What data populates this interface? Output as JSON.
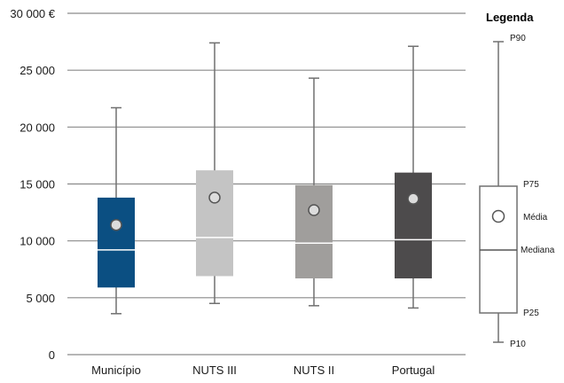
{
  "chart_data": {
    "type": "boxplot",
    "y_unit": "€",
    "ylim": [
      0,
      30000
    ],
    "grid": true,
    "y_ticks": [
      {
        "value": 0,
        "label": "0"
      },
      {
        "value": 5000,
        "label": "5 000"
      },
      {
        "value": 10000,
        "label": "10 000"
      },
      {
        "value": 15000,
        "label": "15 000"
      },
      {
        "value": 20000,
        "label": "20 000"
      },
      {
        "value": 25000,
        "label": "25 000"
      },
      {
        "value": 30000,
        "label": "30 000 €"
      }
    ],
    "categories": [
      "Município",
      "NUTS III",
      "NUTS II",
      "Portugal"
    ],
    "boxes": [
      {
        "category": "Município",
        "p10": 3600,
        "p25": 5900,
        "median": 9200,
        "p75": 13800,
        "p90": 21700,
        "mean": 11400,
        "color": "#0b4f82"
      },
      {
        "category": "NUTS III",
        "p10": 4500,
        "p25": 6900,
        "median": 10300,
        "p75": 16200,
        "p90": 27400,
        "mean": 13800,
        "color": "#c4c4c4"
      },
      {
        "category": "NUTS II",
        "p10": 4300,
        "p25": 6700,
        "median": 9800,
        "p75": 14900,
        "p90": 24300,
        "mean": 12700,
        "color": "#a09e9c"
      },
      {
        "category": "Portugal",
        "p10": 4100,
        "p25": 6700,
        "median": 10100,
        "p75": 16000,
        "p90": 27100,
        "mean": 13700,
        "color": "#4d4b4c"
      }
    ],
    "legend": {
      "title": "Legenda",
      "placement": "right",
      "labels": {
        "p90": "P90",
        "p75": "P75",
        "mean": "Média",
        "median": "Mediana",
        "p25": "P25",
        "p10": "P10"
      }
    }
  }
}
